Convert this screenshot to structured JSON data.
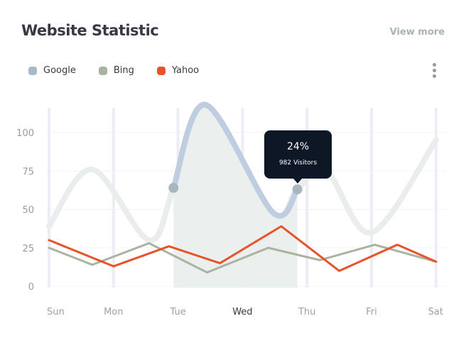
{
  "header": {
    "title": "Website Statistic",
    "view_more": "View more"
  },
  "legend": [
    {
      "label": "Google",
      "color": "#a9b9c7"
    },
    {
      "label": "Bing",
      "color": "#a8b3a0"
    },
    {
      "label": "Yahoo",
      "color": "#e8532a"
    }
  ],
  "tooltip": {
    "percent": "24%",
    "visitors": "982 Visitors"
  },
  "chart_data": {
    "type": "line",
    "categories": [
      "Sun",
      "Mon",
      "Tue",
      "Wed",
      "Thu",
      "Fri",
      "Sat"
    ],
    "highlighted_category": "Wed",
    "yticks": [
      0,
      25,
      50,
      75,
      100
    ],
    "ylim": [
      0,
      120
    ],
    "grid": true,
    "legend_position": "top-left",
    "series": [
      {
        "name": "Google",
        "color": "#a9b9c7",
        "line_color": "#e9eeec",
        "highlight_color": "#bfcde0",
        "smooth": true,
        "x": [
          0,
          0.67,
          1.55,
          1.93,
          2.43,
          3.47,
          3.85,
          4.3,
          5.0,
          6
        ],
        "y": [
          39,
          76,
          30,
          64,
          118,
          48,
          63,
          75,
          35,
          95
        ],
        "highlight_range": [
          1.93,
          3.85
        ]
      },
      {
        "name": "Bing",
        "color": "#a8b3a0",
        "x": [
          0,
          0.67,
          1.55,
          2.45,
          3.4,
          4.2,
          5.05,
          6
        ],
        "y": [
          25,
          14,
          28,
          9,
          25,
          17,
          27,
          16
        ]
      },
      {
        "name": "Yahoo",
        "color": "#e8532a",
        "x": [
          0,
          1,
          1.86,
          2.65,
          3.6,
          4.5,
          5.4,
          6
        ],
        "y": [
          30,
          13,
          26,
          15,
          39,
          10,
          27,
          16
        ]
      }
    ]
  }
}
